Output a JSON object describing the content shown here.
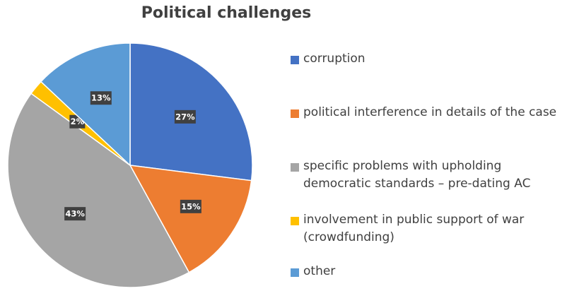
{
  "chart_data": {
    "type": "pie",
    "title": "Political challenges",
    "slices": [
      {
        "label": "corruption",
        "value": 27,
        "data_label": "27%",
        "color": "#4472C4"
      },
      {
        "label": "political interference in details of the case",
        "value": 15,
        "data_label": "15%",
        "color": "#ED7D31"
      },
      {
        "label": "specific problems with upholding democratic standards – pre-dating AC",
        "value": 43,
        "data_label": "43%",
        "color": "#A5A5A5"
      },
      {
        "label": "involvement in public support of war (crowdfunding)",
        "value": 2,
        "data_label": "2%",
        "color": "#FFC000"
      },
      {
        "label": "other",
        "value": 13,
        "data_label": "13%",
        "color": "#5B9BD5"
      }
    ],
    "legend_position": "right"
  }
}
